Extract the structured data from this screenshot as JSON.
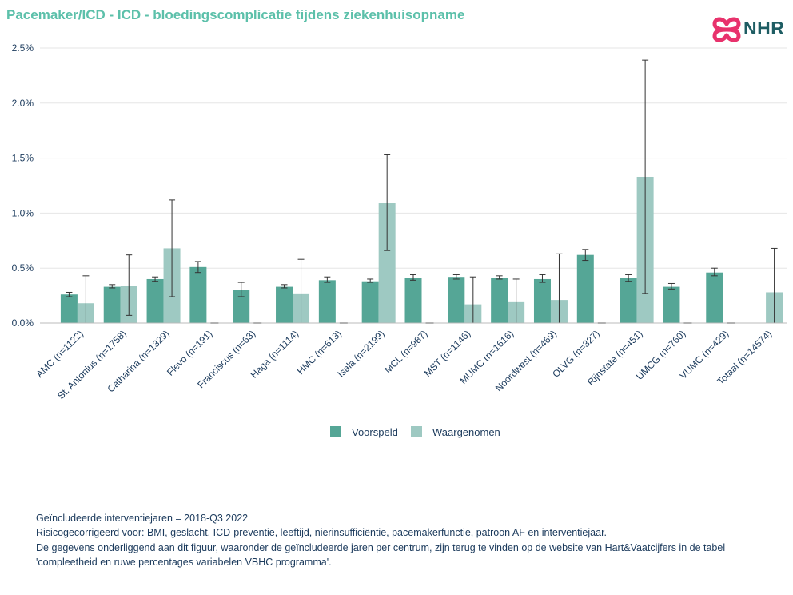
{
  "title": "Pacemaker/ICD - ICD - bloedingscomplicatie tijdens ziekenhuisopname",
  "logo": {
    "text": "NHR",
    "icon": "nhr-heart-logo-icon",
    "color": "#e8326c"
  },
  "colors": {
    "predicted": "#55a696",
    "observed": "#9ec9c2",
    "title": "#5cc0aa",
    "axis_text": "#1b3a5c"
  },
  "chart_data": {
    "type": "bar",
    "yaxis": {
      "ticks": [
        "0.0%",
        "0.5%",
        "1.0%",
        "1.5%",
        "2.0%",
        "2.5%"
      ],
      "ylim": [
        0,
        2.5
      ],
      "unit": "%"
    },
    "grid": true,
    "legend_position": "bottom",
    "categories": [
      "AMC (n=1122)",
      "St. Antonius (n=1758)",
      "Catharina (n=1329)",
      "Flevo (n=191)",
      "Franciscus (n=63)",
      "Haga (n=1114)",
      "HMC (n=613)",
      "Isala (n=2199)",
      "MCL (n=987)",
      "MST (n=1146)",
      "MUMC (n=1616)",
      "Noordwest (n=469)",
      "OLVG (n=327)",
      "Rijnstate (n=451)",
      "UMCG (n=760)",
      "VUMC (n=429)",
      "Totaal (n=14574)"
    ],
    "series": [
      {
        "name": "Voorspeld",
        "values": [
          0.26,
          0.33,
          0.4,
          0.51,
          0.3,
          0.33,
          0.39,
          0.38,
          0.41,
          0.42,
          0.41,
          0.4,
          0.62,
          0.41,
          0.33,
          0.46,
          null
        ],
        "error_low": [
          0.24,
          0.32,
          0.38,
          0.46,
          0.24,
          0.32,
          0.37,
          0.37,
          0.39,
          0.4,
          0.4,
          0.37,
          0.57,
          0.38,
          0.31,
          0.43,
          null
        ],
        "error_high": [
          0.28,
          0.35,
          0.42,
          0.56,
          0.37,
          0.35,
          0.42,
          0.4,
          0.44,
          0.44,
          0.43,
          0.44,
          0.67,
          0.44,
          0.36,
          0.5,
          null
        ]
      },
      {
        "name": "Waargenomen",
        "values": [
          0.18,
          0.34,
          0.68,
          0.0,
          0.0,
          0.27,
          0.0,
          1.09,
          0.0,
          0.17,
          0.19,
          0.21,
          0.0,
          1.33,
          0.0,
          0.0,
          0.28
        ],
        "error_low": [
          null,
          0.07,
          0.24,
          null,
          null,
          null,
          null,
          0.66,
          null,
          null,
          null,
          null,
          null,
          0.27,
          null,
          null,
          null
        ],
        "error_high": [
          0.43,
          0.62,
          1.12,
          null,
          null,
          0.58,
          null,
          1.53,
          null,
          0.42,
          0.4,
          0.63,
          null,
          2.39,
          null,
          null,
          0.68
        ]
      }
    ]
  },
  "footnotes": [
    "Geïncludeerde interventiejaren = 2018-Q3 2022",
    "Risicogecorrigeerd voor: BMI, geslacht, ICD-preventie, leeftijd, nierinsufficiëntie, pacemakerfunctie, patroon AF en interventiejaar.",
    "De gegevens onderliggend aan dit figuur, waaronder de geïncludeerde jaren per centrum, zijn terug te vinden op de website van Hart&Vaatcijfers in de tabel",
    "'compleetheid en ruwe percentages variabelen VBHC programma'."
  ]
}
